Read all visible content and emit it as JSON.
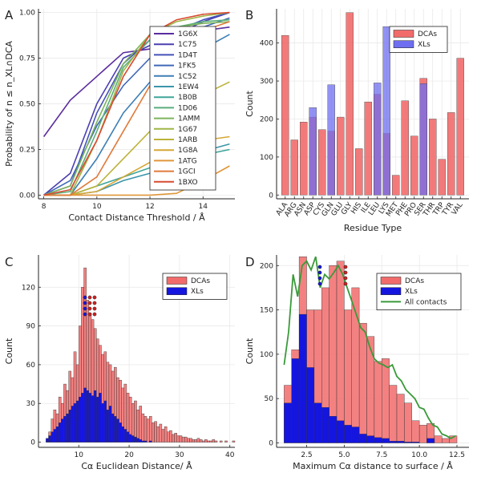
{
  "chart_data": [
    {
      "panel": "A",
      "type": "line",
      "xlabel": "Contact Distance Threshold / Å",
      "ylabel": "Probability of n ≤ n_XL∩DCA",
      "xlim": [
        7.8,
        15.2
      ],
      "ylim": [
        -0.02,
        1.02
      ],
      "xticks": [
        "8",
        "10",
        "12",
        "14"
      ],
      "yticks": [
        "0.00",
        "0.25",
        "0.50",
        "0.75",
        "1.00"
      ],
      "grid": true,
      "legend_position": "top-right",
      "x": [
        8,
        9,
        10,
        11,
        12,
        13,
        14,
        15
      ],
      "series": [
        {
          "name": "1G6X",
          "color": "#5b2c9e",
          "values": [
            0.32,
            0.52,
            0.65,
            0.78,
            0.8,
            0.85,
            0.9,
            0.92
          ]
        },
        {
          "name": "1C75",
          "color": "#4b3fb0",
          "values": [
            0.0,
            0.12,
            0.5,
            0.75,
            0.82,
            0.88,
            0.95,
            1.0
          ]
        },
        {
          "name": "1D4T",
          "color": "#4452b8",
          "values": [
            0.0,
            0.05,
            0.45,
            0.72,
            0.85,
            0.9,
            0.96,
            1.0
          ]
        },
        {
          "name": "1FK5",
          "color": "#4068b8",
          "values": [
            0.0,
            0.08,
            0.38,
            0.6,
            0.75,
            0.85,
            0.92,
            0.97
          ]
        },
        {
          "name": "1C52",
          "color": "#3e7fb5",
          "values": [
            0.0,
            0.0,
            0.2,
            0.45,
            0.62,
            0.72,
            0.8,
            0.88
          ]
        },
        {
          "name": "1EW4",
          "color": "#3b95aa",
          "values": [
            0.0,
            0.0,
            0.02,
            0.08,
            0.12,
            0.18,
            0.24,
            0.28
          ]
        },
        {
          "name": "1B0B",
          "color": "#3fa59a",
          "values": [
            0.0,
            0.0,
            0.05,
            0.1,
            0.15,
            0.18,
            0.22,
            0.25
          ]
        },
        {
          "name": "1D06",
          "color": "#5aae7c",
          "values": [
            0.0,
            0.02,
            0.35,
            0.7,
            0.85,
            0.92,
            0.95,
            0.96
          ]
        },
        {
          "name": "1AMM",
          "color": "#7db45c",
          "values": [
            0.0,
            0.05,
            0.4,
            0.72,
            0.88,
            0.92,
            0.94,
            0.95
          ]
        },
        {
          "name": "1G67",
          "color": "#9fb547",
          "values": [
            0.0,
            0.0,
            0.3,
            0.68,
            0.88,
            0.95,
            0.98,
            1.0
          ]
        },
        {
          "name": "1ARB",
          "color": "#bcb23a",
          "values": [
            0.0,
            0.0,
            0.05,
            0.2,
            0.35,
            0.45,
            0.55,
            0.62
          ]
        },
        {
          "name": "1G8A",
          "color": "#d6a735",
          "values": [
            0.0,
            0.0,
            0.02,
            0.1,
            0.18,
            0.25,
            0.3,
            0.32
          ]
        },
        {
          "name": "1ATG",
          "color": "#e0963a",
          "values": [
            0.0,
            0.0,
            0.0,
            0.0,
            0.0,
            0.01,
            0.08,
            0.16
          ]
        },
        {
          "name": "1GCI",
          "color": "#e07a3a",
          "values": [
            0.0,
            0.0,
            0.1,
            0.35,
            0.6,
            0.8,
            0.9,
            0.95
          ]
        },
        {
          "name": "1BXO",
          "color": "#d94a32",
          "values": [
            0.0,
            0.03,
            0.3,
            0.65,
            0.88,
            0.96,
            0.99,
            1.0
          ]
        }
      ]
    },
    {
      "panel": "B",
      "type": "bar",
      "xlabel": "Residue Type",
      "ylabel": "Count",
      "ylim": [
        -10,
        490
      ],
      "yticks": [
        "0",
        "100",
        "200",
        "300",
        "400"
      ],
      "grid": true,
      "legend_position": "top-right",
      "categories": [
        "ALA",
        "ARG",
        "ASN",
        "ASP",
        "CYS",
        "GLN",
        "GLU",
        "GLY",
        "HIS",
        "ILE",
        "LEU",
        "LYS",
        "MET",
        "PHE",
        "PRO",
        "SER",
        "THR",
        "TRP",
        "TYR",
        "VAL"
      ],
      "series": [
        {
          "name": "DCAs",
          "color": "#f26b6b",
          "values": [
            420,
            145,
            192,
            205,
            172,
            168,
            205,
            480,
            122,
            245,
            265,
            162,
            52,
            248,
            155,
            307,
            200,
            94,
            217,
            360
          ]
        },
        {
          "name": "XLs",
          "color": "#6e6ef0",
          "values": [
            0,
            0,
            0,
            230,
            0,
            290,
            0,
            0,
            0,
            0,
            295,
            443,
            0,
            0,
            0,
            293,
            0,
            0,
            0,
            0
          ]
        }
      ]
    },
    {
      "panel": "C",
      "type": "bar",
      "xlabel": "Cα Euclidean Distance/ Å",
      "ylabel": "Count",
      "xlim": [
        2,
        41
      ],
      "ylim": [
        -4,
        145
      ],
      "xticks": [
        "10",
        "20",
        "30",
        "40"
      ],
      "yticks": [
        "0",
        "30",
        "60",
        "90",
        "120"
      ],
      "grid": true,
      "legend_position": "top-right",
      "bin_start": 3.5,
      "bin_width": 0.5,
      "series": [
        {
          "name": "DCAs",
          "color": "#f26b6b",
          "values": [
            2,
            8,
            18,
            25,
            22,
            35,
            30,
            45,
            40,
            55,
            50,
            70,
            60,
            90,
            120,
            135,
            110,
            100,
            95,
            88,
            80,
            75,
            68,
            70,
            62,
            60,
            55,
            58,
            50,
            48,
            42,
            45,
            38,
            35,
            30,
            32,
            25,
            28,
            22,
            20,
            18,
            20,
            15,
            16,
            12,
            14,
            10,
            12,
            8,
            9,
            6,
            7,
            5,
            5,
            4,
            4,
            3,
            3,
            2,
            2,
            3,
            2,
            1,
            2,
            1,
            1,
            2,
            1,
            0,
            1,
            0,
            1,
            0,
            0,
            1
          ]
        },
        {
          "name": "XLs",
          "color": "#1515e0",
          "values": [
            3,
            5,
            8,
            10,
            12,
            15,
            18,
            20,
            22,
            25,
            28,
            30,
            32,
            35,
            38,
            42,
            40,
            38,
            36,
            40,
            35,
            38,
            30,
            32,
            25,
            28,
            22,
            20,
            18,
            15,
            12,
            10,
            8,
            6,
            5,
            4,
            3,
            2,
            1,
            1,
            0,
            1
          ]
        }
      ]
    },
    {
      "panel": "D",
      "type": "bar",
      "xlabel": "Maximum Cα distance to surface / Å",
      "ylabel": "Count",
      "xlim": [
        0.5,
        13.3
      ],
      "ylim": [
        -5,
        212
      ],
      "xticks": [
        "2.5",
        "5.0",
        "7.5",
        "10.0",
        "12.5"
      ],
      "yticks": [
        "0",
        "50",
        "100",
        "150",
        "200"
      ],
      "grid": true,
      "legend_position": "top-right",
      "bin_start": 1.0,
      "bin_width": 0.5,
      "series": [
        {
          "name": "DCAs",
          "color": "#f26b6b",
          "values": [
            65,
            105,
            210,
            150,
            150,
            175,
            200,
            205,
            150,
            175,
            135,
            120,
            92,
            95,
            65,
            55,
            45,
            25,
            20,
            22,
            8,
            5,
            8
          ]
        },
        {
          "name": "XLs",
          "color": "#1515e0",
          "values": [
            45,
            95,
            145,
            85,
            45,
            40,
            30,
            25,
            20,
            18,
            10,
            8,
            6,
            5,
            2,
            2,
            1,
            1,
            0,
            5,
            0,
            0,
            0
          ]
        },
        {
          "name": "All contacts",
          "color": "#3a9a3a",
          "type": "line",
          "x": [
            1.0,
            1.3,
            1.6,
            1.9,
            2.2,
            2.5,
            2.8,
            3.1,
            3.4,
            3.7,
            4.0,
            4.3,
            4.6,
            4.9,
            5.2,
            5.5,
            5.8,
            6.1,
            6.4,
            6.7,
            7.0,
            7.3,
            7.6,
            7.9,
            8.2,
            8.5,
            8.8,
            9.1,
            9.4,
            9.7,
            10.0,
            10.3,
            10.6,
            10.9,
            11.2,
            11.5,
            11.8,
            12.1,
            12.4
          ],
          "values": [
            88,
            125,
            190,
            165,
            200,
            205,
            195,
            210,
            175,
            190,
            185,
            192,
            200,
            190,
            175,
            160,
            145,
            130,
            125,
            108,
            95,
            90,
            88,
            85,
            88,
            75,
            70,
            60,
            55,
            50,
            40,
            38,
            28,
            20,
            18,
            10,
            8,
            5,
            8
          ]
        }
      ]
    }
  ],
  "panel_labels": [
    "A",
    "B",
    "C",
    "D"
  ]
}
